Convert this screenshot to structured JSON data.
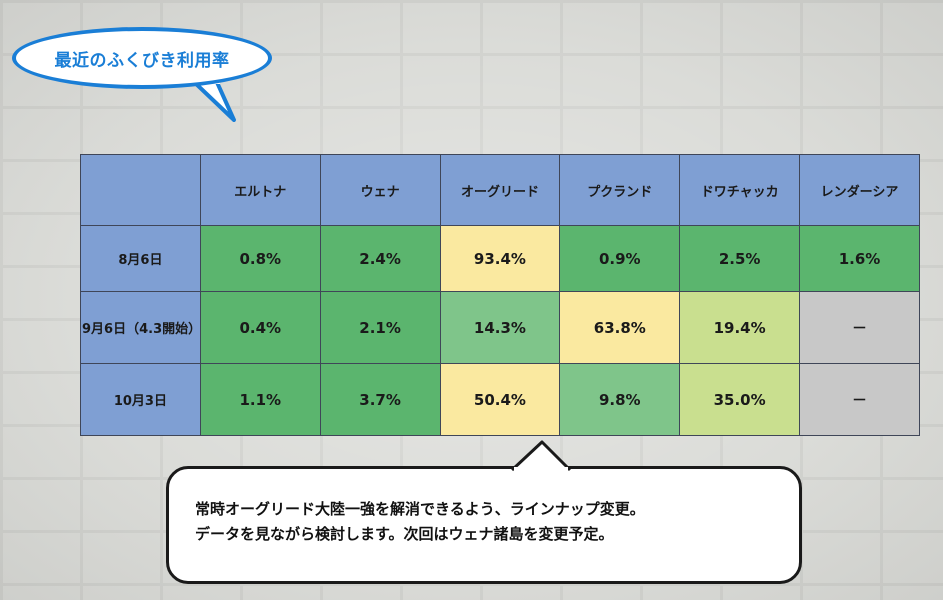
{
  "title": "最近のふくびき利用率",
  "table": {
    "columns": [
      "エルトナ",
      "ウェナ",
      "オーグリード",
      "プクランド",
      "ドワチャッカ",
      "レンダーシア"
    ],
    "rows": [
      {
        "label": "8月6日",
        "values": [
          "0.8%",
          "2.4%",
          "93.4%",
          "0.9%",
          "2.5%",
          "1.6%"
        ]
      },
      {
        "label": "9月6日（4.3開始）",
        "values": [
          "0.4%",
          "2.1%",
          "14.3%",
          "63.8%",
          "19.4%",
          "－"
        ]
      },
      {
        "label": "10月3日",
        "values": [
          "1.1%",
          "3.7%",
          "50.4%",
          "9.8%",
          "35.0%",
          "－"
        ]
      }
    ]
  },
  "colors": {
    "header": "#7f9fd3",
    "dark_green": "#5bb56e",
    "mid_green": "#7fc58a",
    "light_green": "#c9df8f",
    "yellow": "#fae9a0",
    "gray": "#c8c8c8",
    "bubble_accent": "#1a7ed6"
  },
  "note": {
    "line1": "常時オーグリード大陸一強を解消できるよう、ラインナップ変更。",
    "line2": "データを見ながら検討します。次回はウェナ諸島を変更予定。"
  }
}
